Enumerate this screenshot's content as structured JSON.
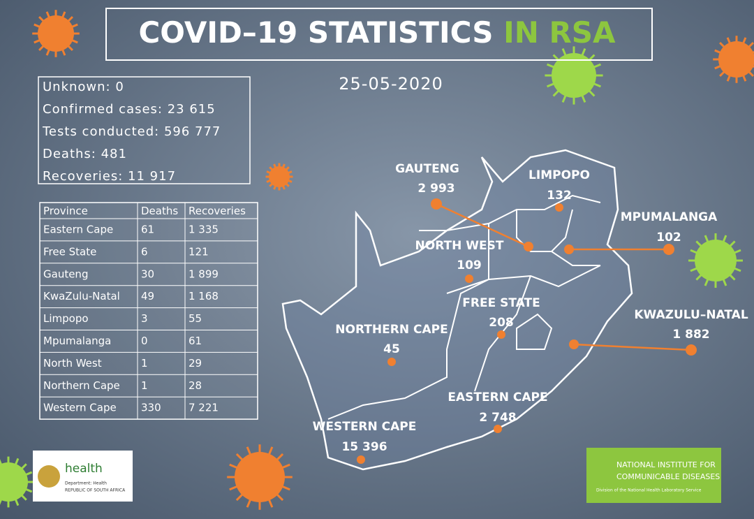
{
  "header": {
    "title": "COVID–19 STATISTICS",
    "title_highlight": "IN RSA",
    "date": "25-05-2020"
  },
  "summary": [
    "Unknown: 0",
    "Confirmed cases: 23 615",
    "Tests conducted: 596 777",
    "Deaths: 481",
    "Recoveries:  11 917"
  ],
  "table": {
    "header": [
      "Province",
      "Deaths",
      "Recoveries"
    ],
    "rows": [
      [
        "Eastern Cape",
        "61",
        "1 335"
      ],
      [
        "Free State",
        "6",
        "121"
      ],
      [
        "Gauteng",
        "30",
        "1 899"
      ],
      [
        "KwaZulu-Natal",
        "49",
        "1 168"
      ],
      [
        "Limpopo",
        "3",
        "55"
      ],
      [
        "Mpumalanga",
        "0",
        "61"
      ],
      [
        "North West",
        "1",
        "29"
      ],
      [
        "Northern Cape",
        "1",
        "28"
      ],
      [
        "Western Cape",
        "330",
        "7 221"
      ]
    ]
  },
  "map": {
    "provinces": [
      {
        "name": "GAUTENG",
        "value": "2 993"
      },
      {
        "name": "LIMPOPO",
        "value": "132"
      },
      {
        "name": "MPUMALANGA",
        "value": "102"
      },
      {
        "name": "NORTH WEST",
        "value": "109"
      },
      {
        "name": "FREE STATE",
        "value": "208"
      },
      {
        "name": "KWAZULU–NATAL",
        "value": "1 882"
      },
      {
        "name": "NORTHERN CAPE",
        "value": "45"
      },
      {
        "name": "EASTERN CAPE",
        "value": "2 748"
      },
      {
        "name": "WESTERN CAPE",
        "value": "15 396"
      }
    ]
  },
  "logos": {
    "health": {
      "name": "health",
      "sub1": "Department: Health",
      "sub2": "REPUBLIC OF SOUTH AFRICA"
    },
    "nicd": {
      "line1": "NATIONAL INSTITUTE FOR",
      "line2": "COMMUNICABLE DISEASES",
      "line3": "Division of the National Health Laboratory Service"
    }
  }
}
